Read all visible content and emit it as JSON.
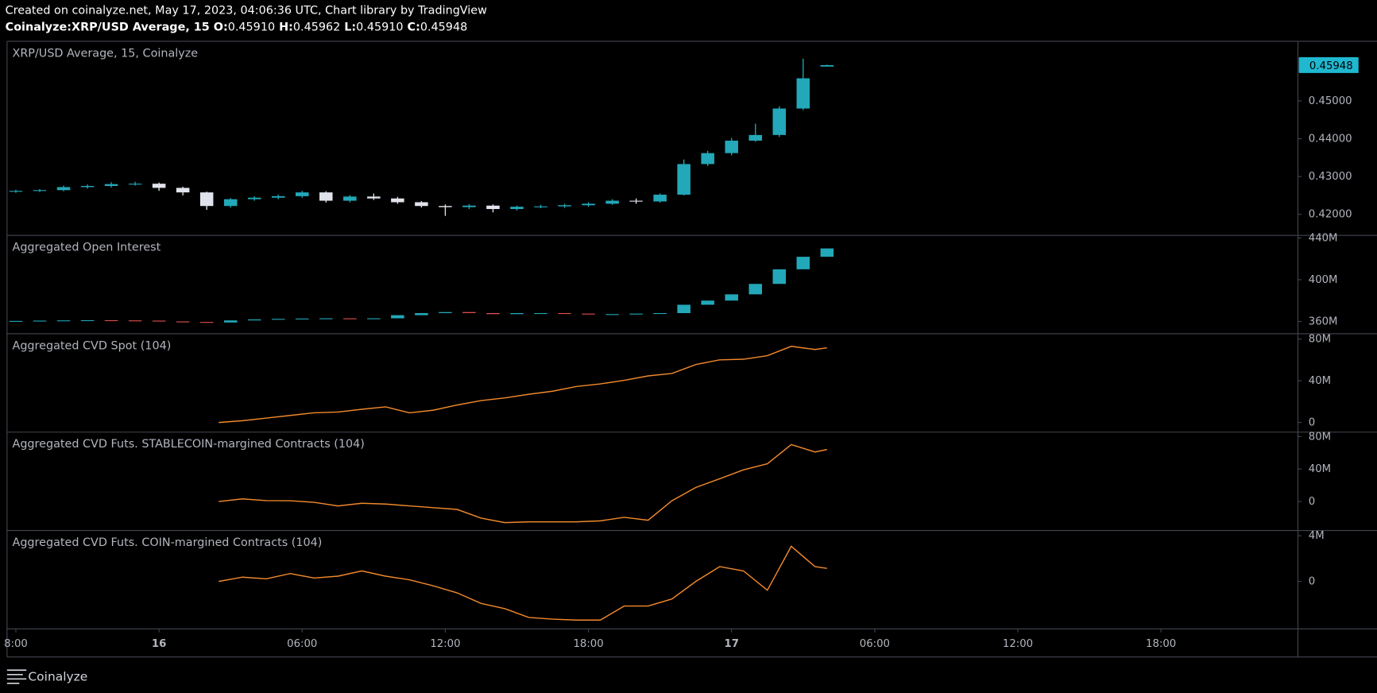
{
  "header": {
    "created": "Created on coinalyze.net, May 17, 2023, 04:06:36 UTC, Chart library by TradingView",
    "symbol": "Coinalyze:XRP/USD Average, 15",
    "ohlc": [
      {
        "label": "O:",
        "value": "0.45910"
      },
      {
        "label": "H:",
        "value": "0.45962"
      },
      {
        "label": "L:",
        "value": "0.45910"
      },
      {
        "label": "C:",
        "value": "0.45948"
      }
    ]
  },
  "footer": {
    "brand": "Coinalyze"
  },
  "x_axis": {
    "xlim": [
      -6.37,
      47.74
    ],
    "xticks": [
      {
        "value": -6,
        "label": "8:00"
      },
      {
        "value": 0,
        "label": "16"
      },
      {
        "value": 6,
        "label": "06:00"
      },
      {
        "value": 12,
        "label": "12:00"
      },
      {
        "value": 18,
        "label": "18:00"
      },
      {
        "value": 24,
        "label": "17"
      },
      {
        "value": 30,
        "label": "06:00"
      },
      {
        "value": 36,
        "label": "12:00"
      },
      {
        "value": 42,
        "label": "18:00"
      }
    ]
  },
  "chart_data": [
    {
      "type": "candlestick",
      "title": "XRP/USD Average, 15, Coinalyze",
      "up_color": "#22a8b8",
      "down_color": "#e0e3eb",
      "x": [
        -6,
        -5,
        -4,
        -3,
        -2,
        -1,
        0,
        1,
        2,
        3,
        4,
        5,
        6,
        7,
        8,
        9,
        10,
        11,
        12,
        13,
        14,
        15,
        16,
        17,
        18,
        19,
        20,
        21,
        22,
        23,
        24,
        25,
        26,
        27,
        28
      ],
      "open": [
        0.426,
        0.4262,
        0.4264,
        0.4272,
        0.4275,
        0.428,
        0.4281,
        0.427,
        0.4258,
        0.4222,
        0.424,
        0.4244,
        0.4248,
        0.4258,
        0.4236,
        0.4247,
        0.4242,
        0.4232,
        0.4222,
        0.4219,
        0.4223,
        0.4214,
        0.422,
        0.4221,
        0.4224,
        0.4228,
        0.4236,
        0.4234,
        0.4252,
        0.4333,
        0.4362,
        0.4395,
        0.441,
        0.448,
        0.4591
      ],
      "high": [
        0.4265,
        0.4267,
        0.4276,
        0.4279,
        0.4285,
        0.4286,
        0.4284,
        0.4273,
        0.426,
        0.4243,
        0.4248,
        0.4252,
        0.4262,
        0.4261,
        0.4251,
        0.4255,
        0.4246,
        0.4235,
        0.4226,
        0.4227,
        0.4226,
        0.4223,
        0.4225,
        0.4228,
        0.4232,
        0.424,
        0.4242,
        0.4255,
        0.4345,
        0.4368,
        0.4402,
        0.444,
        0.4486,
        0.4612,
        0.45962
      ],
      "low": [
        0.4257,
        0.4259,
        0.4261,
        0.4268,
        0.4271,
        0.4276,
        0.4262,
        0.425,
        0.4212,
        0.4218,
        0.4236,
        0.424,
        0.4244,
        0.4231,
        0.4232,
        0.4238,
        0.4228,
        0.4218,
        0.4196,
        0.4214,
        0.4205,
        0.421,
        0.4216,
        0.4217,
        0.422,
        0.4225,
        0.4228,
        0.4231,
        0.425,
        0.4328,
        0.4356,
        0.4392,
        0.4405,
        0.4476,
        0.4591
      ],
      "close": [
        0.4262,
        0.4264,
        0.4272,
        0.4275,
        0.428,
        0.4281,
        0.427,
        0.4258,
        0.4222,
        0.424,
        0.4244,
        0.4248,
        0.4258,
        0.4236,
        0.4247,
        0.4242,
        0.4232,
        0.4222,
        0.4219,
        0.4223,
        0.4214,
        0.422,
        0.4221,
        0.4224,
        0.4228,
        0.4236,
        0.4234,
        0.4252,
        0.4333,
        0.4362,
        0.4395,
        0.441,
        0.448,
        0.456,
        0.45948
      ],
      "ylim": [
        0.41442,
        0.4658
      ],
      "yticks": [
        {
          "value": 0.42,
          "label": "0.42000"
        },
        {
          "value": 0.43,
          "label": "0.43000"
        },
        {
          "value": 0.44,
          "label": "0.44000"
        },
        {
          "value": 0.45,
          "label": "0.45000"
        }
      ]
    },
    {
      "type": "candlestick",
      "title": "Aggregated Open Interest",
      "up_color": "#22a8b8",
      "down_color": "#e2504c",
      "x": [
        -6,
        -5,
        -4,
        -3,
        -2,
        -1,
        0,
        1,
        2,
        3,
        4,
        5,
        6,
        7,
        8,
        9,
        10,
        11,
        12,
        13,
        14,
        15,
        16,
        17,
        18,
        19,
        20,
        21,
        22,
        23,
        24,
        25,
        26,
        27,
        28
      ],
      "open": [
        360.3,
        360.5,
        360.8,
        361,
        361.2,
        361,
        360.8,
        360,
        359.5,
        359,
        361,
        362,
        362.5,
        362.8,
        363,
        362.5,
        363,
        366,
        368,
        369,
        368,
        367,
        368,
        368,
        367.5,
        367,
        367,
        367.5,
        368,
        376,
        380,
        386,
        396,
        410,
        422
      ],
      "close": [
        360.5,
        360.8,
        361,
        361.2,
        361,
        360.8,
        360,
        359.5,
        359,
        361,
        362,
        362.5,
        362.8,
        363,
        362.5,
        363,
        366,
        368,
        369,
        368,
        367,
        368,
        368,
        367.5,
        367,
        367,
        367.5,
        368,
        376,
        380,
        386,
        396,
        410,
        422,
        430
      ],
      "ylim": [
        348.2,
        442.5
      ],
      "yticks": [
        {
          "value": 360,
          "label": "360M"
        },
        {
          "value": 400,
          "label": "400M"
        },
        {
          "value": 440,
          "label": "440M"
        }
      ]
    },
    {
      "type": "line",
      "title": "Aggregated CVD Spot (104)",
      "color": "#f0892b",
      "x": [
        2.5,
        3.5,
        4.5,
        5.5,
        6.5,
        7.5,
        8.5,
        9.5,
        10.5,
        11.5,
        12.5,
        13.5,
        14.5,
        15.5,
        16.5,
        17.5,
        18.5,
        19.5,
        20.5,
        21.5,
        22.5,
        23.5,
        24.5,
        25.5,
        26.5,
        27.5,
        28
      ],
      "values": [
        0,
        1.7,
        4.2,
        6.7,
        9.3,
        10,
        12.6,
        15,
        9.3,
        11.8,
        16.8,
        21,
        23.6,
        27,
        30,
        34.5,
        37,
        40.4,
        44.6,
        47,
        55.6,
        60,
        60.6,
        64,
        73,
        70,
        71.6
      ],
      "ylim": [
        -9.26,
        85.05
      ],
      "yticks": [
        0,
        {
          "value": 40,
          "label": "40M"
        },
        {
          "value": 80,
          "label": "80M"
        }
      ]
    },
    {
      "type": "line",
      "title": "Aggregated CVD Futs. STABLECOIN-margined Contracts (104)",
      "color": "#f0892b",
      "x": [
        2.5,
        3.5,
        4.5,
        5.5,
        6.5,
        7.5,
        8.5,
        9.5,
        10.5,
        11.5,
        12.5,
        13.5,
        14.5,
        15.5,
        16.5,
        17.5,
        18.5,
        19.5,
        20.5,
        21.5,
        22.5,
        23.5,
        24.5,
        25.5,
        26.5,
        27.5,
        28
      ],
      "values": [
        0,
        3.2,
        1.1,
        1,
        -1,
        -5.4,
        -2.2,
        -3.2,
        -5.4,
        -7.6,
        -9.7,
        -20.5,
        -26,
        -25,
        -25,
        -25,
        -23.8,
        -19.5,
        -23,
        1,
        17.3,
        28,
        39,
        46.5,
        70,
        61,
        64
      ],
      "ylim": [
        -35.7,
        85.4
      ],
      "yticks": [
        0,
        {
          "value": 40,
          "label": "40M"
        },
        {
          "value": 80,
          "label": "80M"
        }
      ]
    },
    {
      "type": "line",
      "title": "Aggregated CVD Futs. COIN-margined Contracts (104)",
      "color": "#f0892b",
      "x": [
        2.5,
        3.5,
        4.5,
        5.5,
        6.5,
        7.5,
        8.5,
        9.5,
        10.5,
        11.5,
        12.5,
        13.5,
        14.5,
        15.5,
        16.5,
        17.5,
        18.5,
        19.5,
        20.5,
        21.5,
        22.5,
        23.5,
        24.5,
        25.5,
        26.5,
        27.5,
        28
      ],
      "values": [
        0,
        0.38,
        0.23,
        0.69,
        0.3,
        0.46,
        0.92,
        0.46,
        0.15,
        -0.38,
        -1,
        -1.92,
        -2.38,
        -3.15,
        -3.3,
        -3.38,
        -3.38,
        -2.15,
        -2.15,
        -1.54,
        0,
        1.3,
        0.92,
        -0.77,
        3.08,
        1.3,
        1.15
      ],
      "ylim": [
        -4.15,
        4.46
      ],
      "yticks": [
        0,
        {
          "value": 4,
          "label": "4M"
        }
      ]
    }
  ]
}
